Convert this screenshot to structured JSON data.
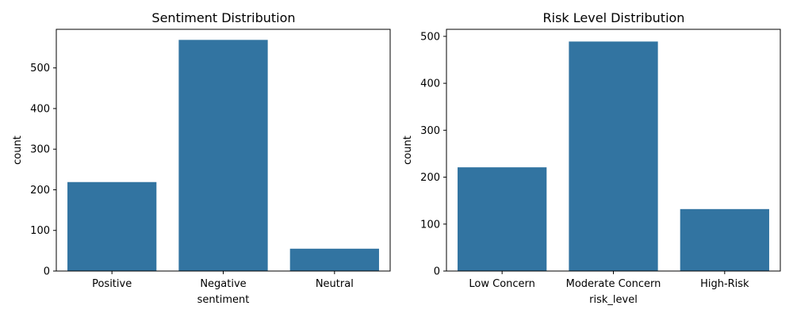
{
  "chart_data": [
    {
      "type": "bar",
      "title": "Sentiment Distribution",
      "xlabel": "sentiment",
      "ylabel": "count",
      "categories": [
        "Positive",
        "Negative",
        "Neutral"
      ],
      "values": [
        219,
        569,
        55
      ],
      "ylim": [
        0,
        595
      ],
      "yticks": [
        0,
        100,
        200,
        300,
        400,
        500
      ],
      "grid": false,
      "color": "#3274a1"
    },
    {
      "type": "bar",
      "title": "Risk Level Distribution",
      "xlabel": "risk_level",
      "ylabel": "count",
      "categories": [
        "Low Concern",
        "Moderate Concern",
        "High-Risk"
      ],
      "values": [
        221,
        489,
        132
      ],
      "ylim": [
        0,
        515
      ],
      "yticks": [
        0,
        100,
        200,
        300,
        400,
        500
      ],
      "grid": false,
      "color": "#3274a1"
    }
  ]
}
